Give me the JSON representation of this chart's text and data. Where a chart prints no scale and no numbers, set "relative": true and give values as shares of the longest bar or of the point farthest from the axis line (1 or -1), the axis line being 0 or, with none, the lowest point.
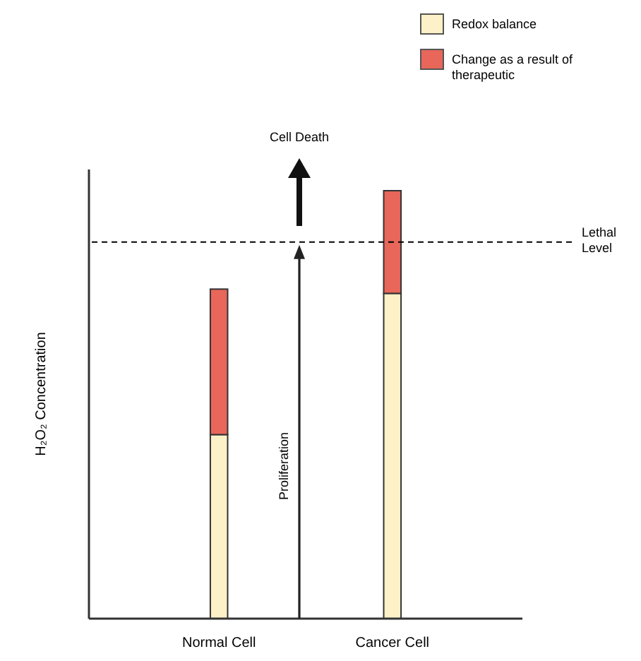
{
  "chart_data": {
    "type": "bar",
    "stacked": true,
    "relative": true,
    "ylabel": "H₂O₂ Concentration",
    "categories": [
      "Normal Cell",
      "Cancer Cell"
    ],
    "series": [
      {
        "name": "Redox balance",
        "color": "#fdf1c8",
        "values": [
          0.43,
          0.76
        ]
      },
      {
        "name": "Change as a result of therapeutic",
        "color": "#e8665a",
        "values": [
          0.34,
          0.24
        ]
      }
    ],
    "ref_lines": [
      {
        "axis": "y",
        "value": 0.88,
        "label": "Lethal Level",
        "line_style": "dashed",
        "color": "#000000"
      }
    ],
    "annotations": [
      "Cell Death",
      "Proliferation"
    ],
    "legend": "top right"
  }
}
